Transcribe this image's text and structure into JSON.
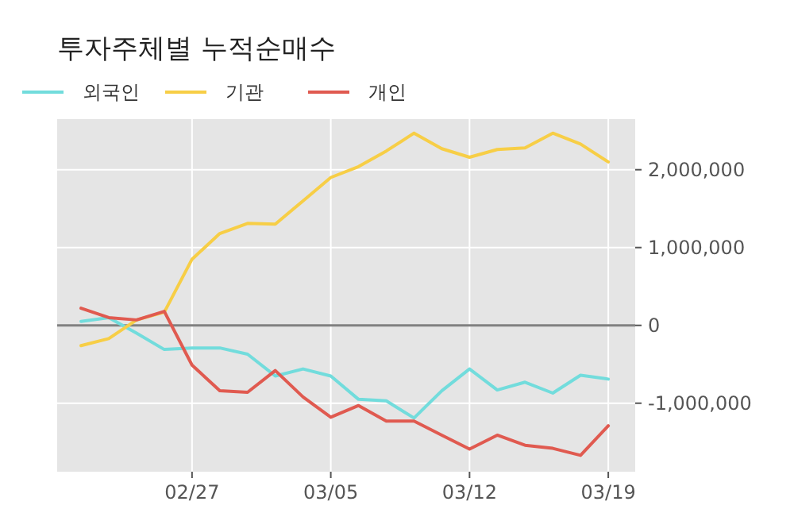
{
  "chart_data": {
    "type": "line",
    "title": "투자주체별 누적순매수",
    "categories": [
      null,
      null,
      null,
      null,
      "02/27",
      null,
      null,
      null,
      null,
      "03/05",
      null,
      null,
      null,
      null,
      "03/12",
      null,
      null,
      null,
      null,
      "03/19"
    ],
    "series": [
      {
        "name": "외국인",
        "color": "#72dcdc",
        "values": [
          50000,
          100000,
          -100000,
          -310000,
          -290000,
          -290000,
          -370000,
          -650000,
          -560000,
          -650000,
          -950000,
          -970000,
          -1190000,
          -840000,
          -560000,
          -830000,
          -730000,
          -870000,
          -640000,
          -690000
        ]
      },
      {
        "name": "기관",
        "color": "#f7ce46",
        "values": [
          -260000,
          -170000,
          70000,
          170000,
          850000,
          1180000,
          1310000,
          1300000,
          1600000,
          1900000,
          2040000,
          2240000,
          2470000,
          2270000,
          2160000,
          2260000,
          2280000,
          2470000,
          2330000,
          2100000
        ]
      },
      {
        "name": "개인",
        "color": "#e05a50",
        "values": [
          220000,
          100000,
          70000,
          180000,
          -510000,
          -840000,
          -860000,
          -580000,
          -920000,
          -1180000,
          -1030000,
          -1230000,
          -1230000,
          -1410000,
          -1590000,
          -1410000,
          -1540000,
          -1580000,
          -1670000,
          -1290000
        ]
      }
    ],
    "ylim": [
      -1880000,
      2650000
    ],
    "yticks": [
      {
        "value": -1000000,
        "label": "-1,000,000"
      },
      {
        "value": 0,
        "label": "0"
      },
      {
        "value": 1000000,
        "label": "1,000,000"
      },
      {
        "value": 2000000,
        "label": "2,000,000"
      }
    ],
    "ref_lines": [
      {
        "axis": "y",
        "value": 0,
        "color": "#808080"
      }
    ],
    "grid": true,
    "legend": "top left",
    "marker": "none",
    "line_style": "solid"
  }
}
